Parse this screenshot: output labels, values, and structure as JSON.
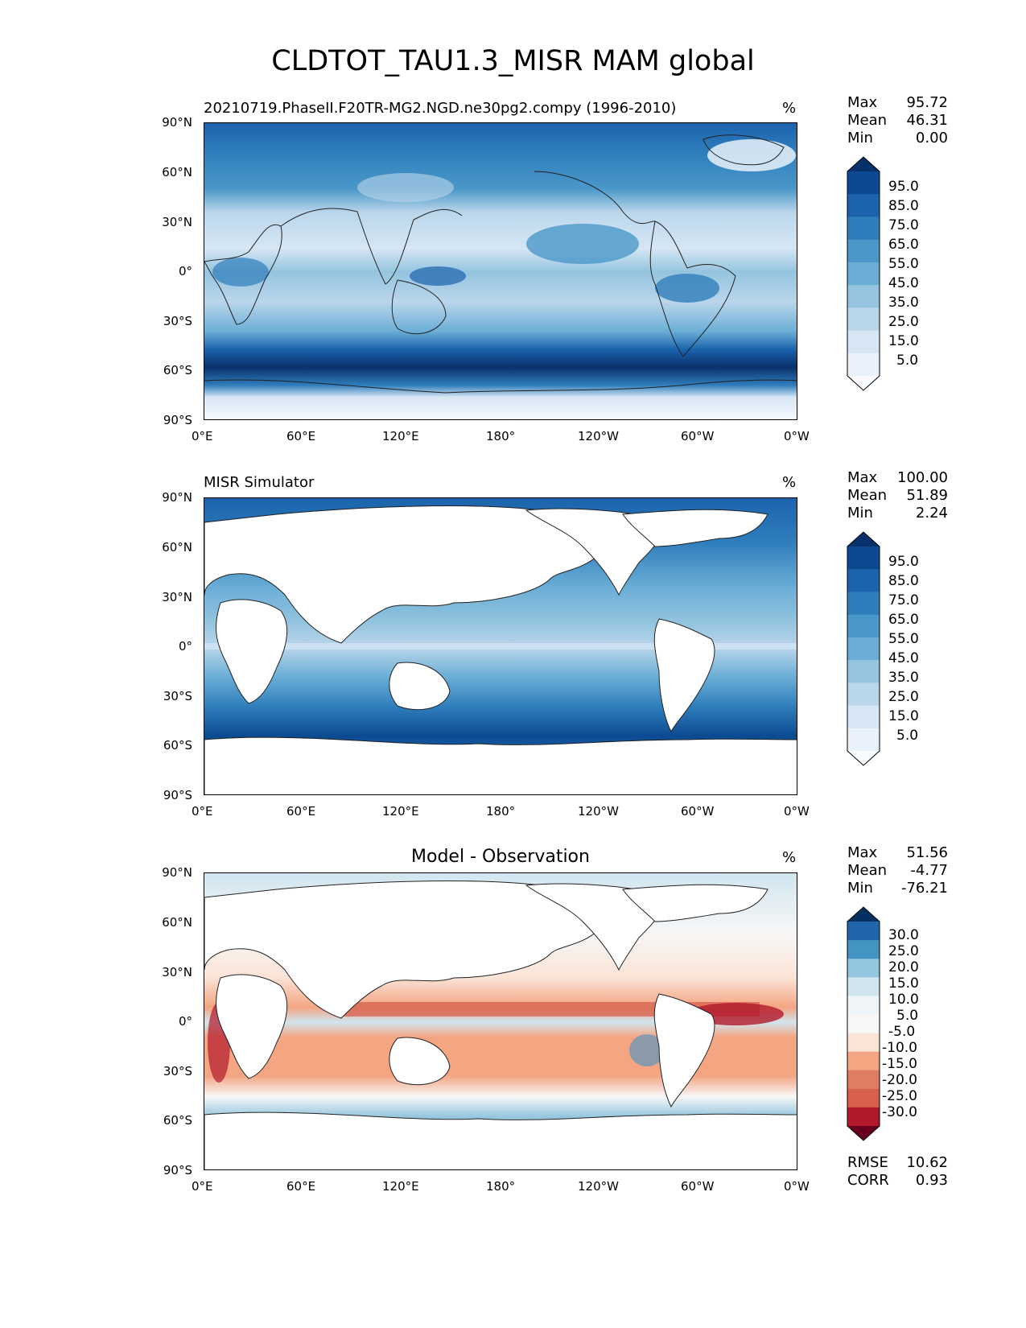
{
  "title": "CLDTOT_TAU1.3_MISR MAM global",
  "lat_labels": [
    "90°N",
    "60°N",
    "30°N",
    "0°",
    "30°S",
    "60°S",
    "90°S"
  ],
  "lon_labels": [
    "0°E",
    "60°E",
    "120°E",
    "180°",
    "120°W",
    "60°W",
    "0°W"
  ],
  "panels": [
    {
      "title": "20210719.PhaseII.F20TR-MG2.NGD.ne30pg2.compy (1996-2010)",
      "units": "%",
      "stats": {
        "max_label": "Max",
        "max": "95.72",
        "mean_label": "Mean",
        "mean": "46.31",
        "min_label": "Min",
        "min": "0.00"
      },
      "colorbar": {
        "labels": [
          "95.0",
          "85.0",
          "75.0",
          "65.0",
          "55.0",
          "45.0",
          "35.0",
          "25.0",
          "15.0",
          "5.0"
        ],
        "colors": [
          "#08306b",
          "#0b4a90",
          "#1b63ad",
          "#2f7ebc",
          "#4a98c9",
          "#6aaed6",
          "#94c4df",
          "#bad6eb",
          "#d6e6f4",
          "#e9f2fa",
          "#f7fbff"
        ],
        "extend": "both"
      }
    },
    {
      "title": "MISR Simulator",
      "units": "%",
      "stats": {
        "max_label": "Max",
        "max": "100.00",
        "mean_label": "Mean",
        "mean": "51.89",
        "min_label": "Min",
        "min": "2.24"
      },
      "colorbar": {
        "labels": [
          "95.0",
          "85.0",
          "75.0",
          "65.0",
          "55.0",
          "45.0",
          "35.0",
          "25.0",
          "15.0",
          "5.0"
        ],
        "colors": [
          "#08306b",
          "#0b4a90",
          "#1b63ad",
          "#2f7ebc",
          "#4a98c9",
          "#6aaed6",
          "#94c4df",
          "#bad6eb",
          "#d6e6f4",
          "#e9f2fa",
          "#f7fbff"
        ],
        "extend": "both"
      }
    },
    {
      "title": "Model - Observation",
      "units": "%",
      "stats": {
        "max_label": "Max",
        "max": "51.56",
        "mean_label": "Mean",
        "mean": "-4.77",
        "min_label": "Min",
        "min": "-76.21"
      },
      "colorbar": {
        "labels": [
          "30.0",
          "25.0",
          "20.0",
          "15.0",
          "10.0",
          "5.0",
          "-5.0",
          "-10.0",
          "-15.0",
          "-20.0",
          "-25.0",
          "-30.0"
        ],
        "colors": [
          "#053061",
          "#2166ac",
          "#4393c3",
          "#92c5de",
          "#d1e5f0",
          "#eef4f8",
          "#f7f7f7",
          "#fbe3d6",
          "#f4a582",
          "#e07c63",
          "#d6604d",
          "#b2182b",
          "#67001f"
        ],
        "extend": "both"
      },
      "metrics": {
        "rmse_label": "RMSE",
        "rmse": "10.62",
        "corr_label": "CORR",
        "corr": "0.93"
      }
    }
  ]
}
